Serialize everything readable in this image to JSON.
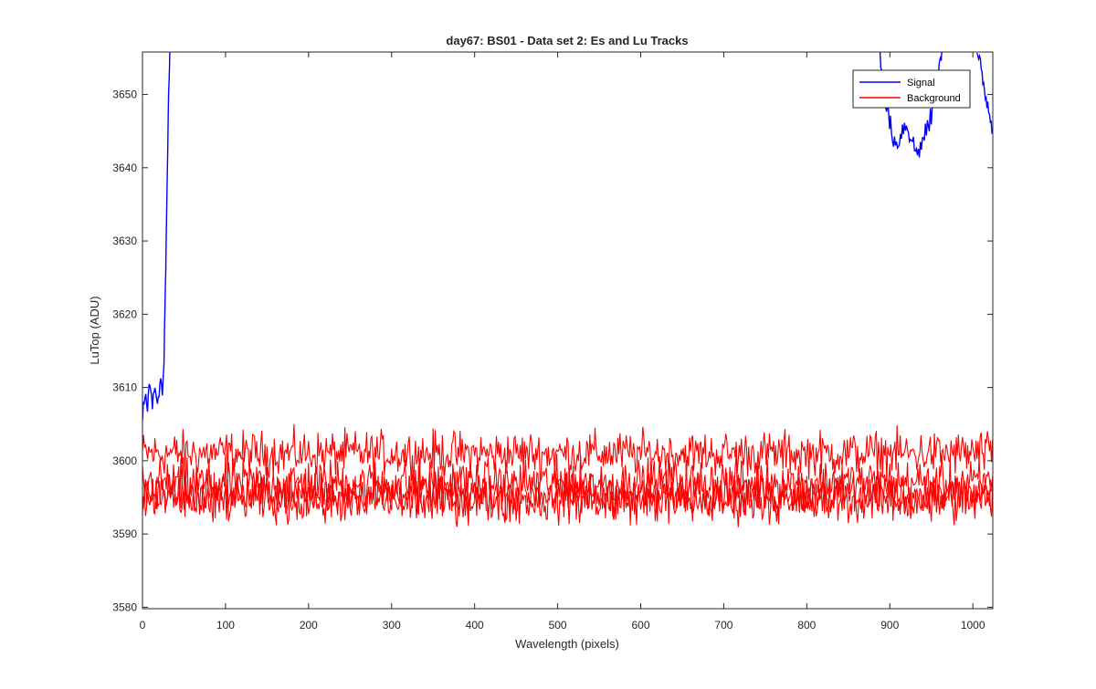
{
  "chart_data": {
    "type": "line",
    "title": "day67: BS01 - Data set 2: Es and Lu Tracks",
    "xlabel": "Wavelength (pixels)",
    "ylabel": "LuTop (ADU)",
    "xlim": [
      0,
      1024
    ],
    "ylim": [
      3579.8,
      3655.8
    ],
    "x_ticks": [
      0,
      100,
      200,
      300,
      400,
      500,
      600,
      700,
      800,
      900,
      1000
    ],
    "y_ticks": [
      3580,
      3590,
      3600,
      3610,
      3620,
      3630,
      3640,
      3650
    ],
    "grid": false,
    "legend_position": "top-right",
    "series": [
      {
        "name": "Signal",
        "color": "#0000ff",
        "segments": [
          {
            "x": [
              0,
              3,
              6,
              9,
              12,
              15,
              18,
              21,
              24,
              26,
              27,
              28,
              29,
              30,
              31,
              32,
              33
            ],
            "y": [
              3606,
              3609,
              3607,
              3611,
              3608,
              3610,
              3607,
              3611,
              3609,
              3614,
              3620,
              3626,
              3633,
              3640,
              3647,
              3652,
              3656
            ]
          },
          {
            "x": [
              888,
              895,
              902,
              908,
              914,
              920,
              926,
              932,
              938,
              944,
              950,
              956,
              962,
              966
            ],
            "y": [
              3656,
              3649,
              3645,
              3643,
              3645,
              3646,
              3644,
              3642,
              3643,
              3645,
              3647,
              3652,
              3656,
              3656
            ]
          },
          {
            "x": [
              1005,
              1010,
              1015,
              1020,
              1024
            ],
            "y": [
              3656,
              3653,
              3650,
              3648,
              3645
            ]
          }
        ]
      },
      {
        "name": "Background",
        "color": "#ff0000",
        "bands": [
          {
            "mean": 3601,
            "spread": 2.2
          },
          {
            "mean": 3597,
            "spread": 2.3
          },
          {
            "mean": 3595.5,
            "spread": 2.3
          },
          {
            "mean": 3594.5,
            "spread": 2.2
          }
        ],
        "observed_range": [
          3590,
          3606
        ]
      }
    ]
  }
}
